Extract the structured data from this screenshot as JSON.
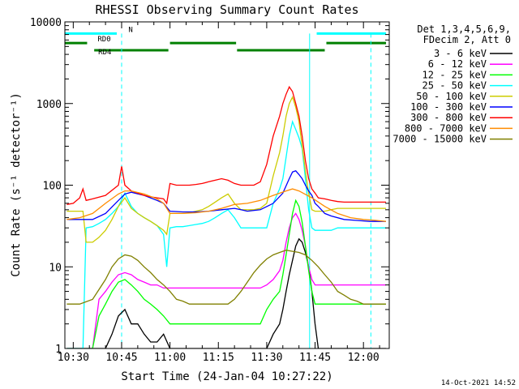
{
  "chart_data": {
    "type": "line",
    "title": "RHESSI Observing Summary Count Rates",
    "xlabel": "Start Time (24-Jan-04 10:27:22)",
    "ylabel": "Count Rate (s⁻¹ detector⁻¹)",
    "y_scale": "log",
    "ylim": [
      1,
      10000
    ],
    "xlim": [
      27.4,
      128.0
    ],
    "x_unit": "minutes after 10:00 UT",
    "xticks": [
      {
        "value": 30,
        "label": "10:30"
      },
      {
        "value": 45,
        "label": "10:45"
      },
      {
        "value": 60,
        "label": "11:00"
      },
      {
        "value": 75,
        "label": "11:15"
      },
      {
        "value": 90,
        "label": "11:30"
      },
      {
        "value": 105,
        "label": "11:45"
      },
      {
        "value": 120,
        "label": "12:00"
      }
    ],
    "yticks": [
      {
        "value": 1,
        "label": "1"
      },
      {
        "value": 10,
        "label": "10"
      },
      {
        "value": 100,
        "label": "100"
      },
      {
        "value": 1000,
        "label": "1000"
      },
      {
        "value": 10000,
        "label": "10000"
      }
    ],
    "legend_header": [
      "Det 1,3,4,5,6,9,",
      "FDecim 2, Att 0"
    ],
    "legend_placement": "right",
    "timestamp": "14-Oct-2021 14:52",
    "grid": false,
    "series": [
      {
        "name": "3 - 6 keV",
        "color": "#000000",
        "x": [
          28,
          33,
          36,
          40,
          42,
          44,
          46,
          48,
          50,
          52,
          54,
          56,
          58,
          60,
          62,
          64,
          66,
          68,
          70,
          72,
          74,
          76,
          78,
          80,
          82,
          84,
          86,
          88,
          90,
          92,
          94,
          95,
          96,
          97,
          98,
          99,
          100,
          101,
          102,
          103,
          104,
          105,
          106,
          108,
          110,
          112,
          114,
          116,
          118,
          120,
          122,
          124,
          126,
          127
        ],
        "y": [
          1,
          1,
          1,
          1,
          1.5,
          2.5,
          3,
          2,
          2,
          1.5,
          1.2,
          1.2,
          1.5,
          1,
          1,
          1,
          1,
          1,
          1,
          1,
          1,
          1,
          1,
          1,
          1,
          1,
          1,
          1,
          1,
          1.5,
          2,
          3,
          5,
          8,
          12,
          18,
          22,
          20,
          15,
          10,
          5,
          2,
          1,
          1,
          1,
          1,
          1,
          1,
          1,
          1,
          1,
          1,
          1,
          1
        ]
      },
      {
        "name": "6 - 12 keV",
        "color": "#ff00ff",
        "x": [
          28,
          33,
          34,
          36,
          38,
          40,
          42,
          44,
          46,
          48,
          50,
          52,
          54,
          56,
          58,
          60,
          62,
          64,
          66,
          68,
          70,
          72,
          74,
          76,
          78,
          80,
          82,
          84,
          86,
          88,
          90,
          92,
          94,
          95,
          96,
          97,
          98,
          99,
          100,
          101,
          102,
          103,
          104,
          105,
          106,
          108,
          110,
          112,
          114,
          116,
          118,
          120,
          122,
          124,
          126,
          127
        ],
        "y": [
          1,
          1,
          1,
          1,
          4,
          5,
          6.5,
          8,
          8.5,
          8,
          7,
          6.5,
          6,
          6,
          5.5,
          5.5,
          5.5,
          5.5,
          5.5,
          5.5,
          5.5,
          5.5,
          5.5,
          5.5,
          5.5,
          5.5,
          5.5,
          5.5,
          5.5,
          5.5,
          6,
          7,
          9,
          12,
          20,
          30,
          40,
          45,
          38,
          28,
          18,
          10,
          7,
          6,
          6,
          6,
          6,
          6,
          6,
          6,
          6,
          6,
          6,
          6,
          6,
          6
        ]
      },
      {
        "name": "12 - 25 keV",
        "color": "#00ff00",
        "x": [
          28,
          33,
          34,
          36,
          38,
          40,
          42,
          44,
          46,
          48,
          50,
          52,
          54,
          56,
          58,
          60,
          62,
          64,
          66,
          68,
          70,
          72,
          74,
          76,
          78,
          80,
          82,
          84,
          86,
          88,
          90,
          92,
          94,
          95,
          96,
          97,
          98,
          99,
          100,
          101,
          102,
          103,
          104,
          105,
          106,
          108,
          110,
          112,
          114,
          116,
          118,
          120,
          122,
          124,
          126,
          127
        ],
        "y": [
          1,
          1,
          1,
          1,
          2.5,
          3.5,
          5,
          6.5,
          7,
          6,
          5,
          4,
          3.5,
          3,
          2.5,
          2,
          2,
          2,
          2,
          2,
          2,
          2,
          2,
          2,
          2,
          2,
          2,
          2,
          2,
          2,
          3,
          4,
          5,
          8,
          14,
          25,
          45,
          65,
          55,
          35,
          18,
          9,
          5,
          3.5,
          3.5,
          3.5,
          3.5,
          3.5,
          3.5,
          3.5,
          3.5,
          3.5,
          3.5,
          3.5,
          3.5,
          3.5
        ]
      },
      {
        "name": "25 - 50 keV",
        "color": "#00ffff",
        "x": [
          28,
          33,
          34,
          36,
          38,
          40,
          42,
          44,
          46,
          48,
          50,
          52,
          54,
          56,
          58,
          59,
          60,
          62,
          64,
          66,
          68,
          70,
          72,
          74,
          76,
          78,
          80,
          82,
          84,
          86,
          88,
          90,
          92,
          94,
          95,
          96,
          97,
          98,
          99,
          100,
          101,
          102,
          103,
          104,
          105,
          106,
          108,
          110,
          112,
          114,
          116,
          118,
          120,
          122,
          124,
          126,
          127
        ],
        "y": [
          1,
          1,
          30,
          31,
          34,
          38,
          45,
          55,
          80,
          55,
          45,
          40,
          36,
          32,
          25,
          10,
          30,
          31,
          31,
          32,
          33,
          34,
          36,
          40,
          45,
          50,
          40,
          30,
          30,
          30,
          30,
          30,
          60,
          90,
          120,
          220,
          400,
          600,
          480,
          380,
          280,
          120,
          50,
          30,
          28,
          28,
          28,
          28,
          30,
          30,
          30,
          30,
          30,
          30,
          30,
          30,
          30
        ]
      },
      {
        "name": "50 - 100 keV",
        "color": "#cccc00",
        "x": [
          28,
          33,
          34,
          36,
          38,
          40,
          42,
          44,
          46,
          48,
          50,
          52,
          54,
          56,
          58,
          59,
          60,
          62,
          64,
          66,
          68,
          70,
          72,
          74,
          76,
          78,
          80,
          82,
          84,
          86,
          88,
          90,
          92,
          94,
          95,
          96,
          97,
          98,
          99,
          100,
          101,
          102,
          103,
          104,
          105,
          106,
          108,
          110,
          112,
          114,
          116,
          118,
          120,
          122,
          124,
          126,
          127
        ],
        "y": [
          48,
          48,
          20,
          20,
          23,
          28,
          38,
          55,
          70,
          52,
          45,
          40,
          36,
          32,
          28,
          25,
          45,
          45,
          45,
          46,
          48,
          50,
          55,
          62,
          70,
          78,
          60,
          50,
          50,
          50,
          52,
          60,
          130,
          250,
          400,
          700,
          1000,
          1200,
          900,
          600,
          300,
          150,
          80,
          50,
          48,
          48,
          48,
          50,
          52,
          52,
          52,
          52,
          52,
          52,
          52,
          52,
          52
        ]
      },
      {
        "name": "100 - 300 keV",
        "color": "#0000ff",
        "x": [
          28,
          33,
          36,
          40,
          44,
          46,
          48,
          52,
          56,
          58,
          60,
          64,
          68,
          72,
          76,
          80,
          82,
          84,
          88,
          92,
          95,
          97,
          98,
          99,
          100,
          101,
          102,
          103,
          104,
          105,
          106,
          108,
          110,
          114,
          118,
          122,
          126,
          127
        ],
        "y": [
          38,
          38,
          38,
          45,
          65,
          78,
          82,
          75,
          65,
          60,
          48,
          47,
          47,
          48,
          50,
          52,
          50,
          48,
          50,
          60,
          80,
          120,
          145,
          150,
          135,
          120,
          100,
          85,
          75,
          60,
          55,
          45,
          42,
          38,
          37,
          36,
          36,
          36
        ]
      },
      {
        "name": "300 - 800 keV",
        "color": "#ff0000",
        "x": [
          28,
          30,
          32,
          33,
          34,
          36,
          40,
          44,
          45,
          46,
          48,
          50,
          52,
          54,
          56,
          58,
          59,
          60,
          62,
          64,
          66,
          68,
          70,
          72,
          74,
          76,
          78,
          80,
          82,
          84,
          86,
          88,
          90,
          92,
          94,
          95,
          96,
          97,
          98,
          99,
          100,
          101,
          102,
          103,
          104,
          105,
          106,
          108,
          110,
          112,
          114,
          116,
          118,
          120,
          122,
          124,
          126,
          127
        ],
        "y": [
          58,
          60,
          70,
          90,
          65,
          68,
          75,
          100,
          170,
          100,
          85,
          80,
          75,
          72,
          70,
          68,
          60,
          105,
          100,
          100,
          100,
          102,
          105,
          110,
          115,
          120,
          115,
          105,
          100,
          100,
          100,
          110,
          180,
          400,
          700,
          1000,
          1300,
          1600,
          1400,
          1000,
          700,
          400,
          200,
          120,
          90,
          80,
          70,
          68,
          65,
          63,
          62,
          62,
          62,
          62,
          62,
          62,
          62,
          62
        ]
      },
      {
        "name": "800 - 7000 keV",
        "color": "#ff8c00",
        "x": [
          28,
          32,
          36,
          40,
          44,
          46,
          48,
          52,
          56,
          58,
          60,
          64,
          68,
          72,
          76,
          80,
          84,
          88,
          92,
          96,
          98,
          100,
          104,
          108,
          112,
          116,
          120,
          124,
          127
        ],
        "y": [
          38,
          40,
          45,
          60,
          78,
          85,
          85,
          78,
          68,
          60,
          45,
          45,
          46,
          48,
          52,
          58,
          60,
          65,
          75,
          85,
          90,
          85,
          70,
          55,
          45,
          40,
          38,
          37,
          36
        ]
      },
      {
        "name": "7000 - 15000 keV",
        "color": "#808000",
        "x": [
          28,
          32,
          36,
          40,
          42,
          44,
          46,
          48,
          50,
          52,
          54,
          56,
          58,
          60,
          62,
          64,
          66,
          68,
          70,
          72,
          74,
          76,
          78,
          80,
          82,
          84,
          86,
          88,
          90,
          92,
          94,
          96,
          98,
          100,
          102,
          104,
          106,
          108,
          110,
          112,
          114,
          116,
          118,
          120,
          122,
          124,
          126,
          127
        ],
        "y": [
          3.5,
          3.5,
          4,
          7,
          10,
          12.5,
          14,
          13.5,
          12,
          10,
          8.5,
          7,
          6,
          5,
          4,
          3.8,
          3.5,
          3.5,
          3.5,
          3.5,
          3.5,
          3.5,
          3.5,
          4,
          5,
          6.5,
          8.5,
          10.5,
          12.5,
          14,
          15,
          16,
          15.5,
          15,
          14,
          12,
          10,
          8,
          6.5,
          5,
          4.5,
          4,
          3.8,
          3.5,
          3.5,
          3.5,
          3.5,
          3.5
        ]
      }
    ],
    "annotations": [
      {
        "label": "N",
        "color": "#00ffff",
        "intervals": [
          [
            27.5,
            43.5
          ],
          [
            105.5,
            127
          ]
        ],
        "level": 7200
      },
      {
        "label": "RD0",
        "color": "#008000",
        "intervals": [
          [
            27.5,
            34.3
          ],
          [
            60,
            80.5
          ],
          [
            108.5,
            127
          ]
        ],
        "level": 5500
      },
      {
        "label": "RD4",
        "color": "#008000",
        "intervals": [
          [
            36.5,
            59.5
          ],
          [
            80.8,
            108
          ]
        ],
        "level": 4500
      }
    ],
    "markers": [
      {
        "label": "",
        "x": 45,
        "color": "#00ffff",
        "style": "dashed"
      },
      {
        "label": "",
        "x": 103.3,
        "color": "#00ffff",
        "style": "solid"
      },
      {
        "label": "",
        "x": 122.3,
        "color": "#00ffff",
        "style": "dashed"
      }
    ]
  }
}
